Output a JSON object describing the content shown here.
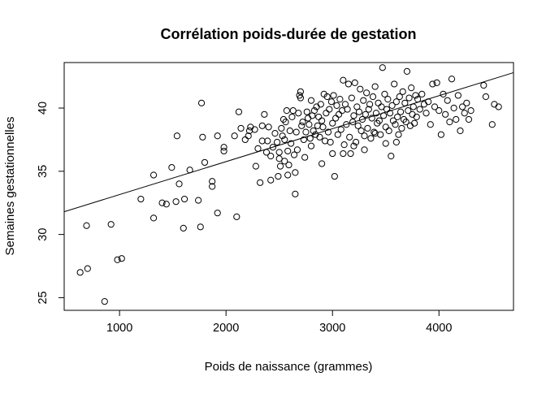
{
  "chart_data": {
    "type": "scatter",
    "title": "Corrélation poids-durée de gestation",
    "xlabel": "Poids de naissance (grammes)",
    "ylabel": "Semaines gestationnelles",
    "xlim": [
      480,
      4700
    ],
    "ylim": [
      24,
      43.6
    ],
    "xticks": [
      1000,
      2000,
      3000,
      4000
    ],
    "yticks": [
      25,
      30,
      35,
      40
    ],
    "marker": "open-circle",
    "grid": false,
    "legend": "none",
    "colors": {
      "points": "#000000",
      "line": "#000000",
      "background": "#ffffff"
    },
    "regression_line": {
      "x": [
        480,
        4700
      ],
      "y": [
        31.8,
        42.8
      ]
    },
    "points": [
      [
        630,
        27
      ],
      [
        690,
        30.7
      ],
      [
        700,
        27.3
      ],
      [
        860,
        24.7
      ],
      [
        920,
        30.8
      ],
      [
        980,
        28
      ],
      [
        1020,
        28.1
      ],
      [
        1200,
        32.8
      ],
      [
        1320,
        31.3
      ],
      [
        1320,
        34.7
      ],
      [
        1400,
        32.5
      ],
      [
        1440,
        32.4
      ],
      [
        1490,
        35.3
      ],
      [
        1530,
        32.6
      ],
      [
        1540,
        37.8
      ],
      [
        1560,
        34
      ],
      [
        1600,
        30.5
      ],
      [
        1610,
        32.8
      ],
      [
        1660,
        35.1
      ],
      [
        1740,
        32.7
      ],
      [
        1760,
        30.6
      ],
      [
        1770,
        40.4
      ],
      [
        1780,
        37.7
      ],
      [
        1800,
        35.7
      ],
      [
        1870,
        34.2
      ],
      [
        1870,
        33.8
      ],
      [
        1920,
        31.7
      ],
      [
        1920,
        37.8
      ],
      [
        1980,
        36.6
      ],
      [
        1980,
        36.9
      ],
      [
        2080,
        37.8
      ],
      [
        2100,
        31.4
      ],
      [
        2120,
        39.7
      ],
      [
        2140,
        38.4
      ],
      [
        2180,
        37.5
      ],
      [
        2210,
        37.8
      ],
      [
        2220,
        38.2
      ],
      [
        2230,
        38.5
      ],
      [
        2270,
        38.3
      ],
      [
        2280,
        35.4
      ],
      [
        2300,
        36.8
      ],
      [
        2320,
        34.1
      ],
      [
        2340,
        38.6
      ],
      [
        2340,
        37.4
      ],
      [
        2360,
        39.5
      ],
      [
        2380,
        36.5
      ],
      [
        2390,
        37.4
      ],
      [
        2400,
        38.5
      ],
      [
        2420,
        36.2
      ],
      [
        2420,
        34.3
      ],
      [
        2440,
        36.9
      ],
      [
        2460,
        38
      ],
      [
        2480,
        37.3
      ],
      [
        2490,
        34.6
      ],
      [
        2500,
        36.5
      ],
      [
        2510,
        35.4
      ],
      [
        2520,
        38.4
      ],
      [
        2530,
        37.8
      ],
      [
        2540,
        39.1
      ],
      [
        2550,
        35.8
      ],
      [
        2550,
        37.5
      ],
      [
        2560,
        38.9
      ],
      [
        2570,
        39.8
      ],
      [
        2580,
        36.6
      ],
      [
        2580,
        34.7
      ],
      [
        2590,
        35.5
      ],
      [
        2600,
        38.2
      ],
      [
        2610,
        37.2
      ],
      [
        2620,
        39.3
      ],
      [
        2630,
        39.8
      ],
      [
        2640,
        36.3
      ],
      [
        2650,
        33.2
      ],
      [
        2650,
        34.9
      ],
      [
        2660,
        38.1
      ],
      [
        2670,
        36.7
      ],
      [
        2680,
        39.6
      ],
      [
        2690,
        41
      ],
      [
        2700,
        40.8
      ],
      [
        2700,
        41.3
      ],
      [
        2710,
        38.6
      ],
      [
        2720,
        38.9
      ],
      [
        2730,
        37.5
      ],
      [
        2740,
        36.1
      ],
      [
        2750,
        38.1
      ],
      [
        2760,
        39.7
      ],
      [
        2770,
        39.2
      ],
      [
        2780,
        38.7
      ],
      [
        2790,
        37.6
      ],
      [
        2800,
        40.6
      ],
      [
        2810,
        39.4
      ],
      [
        2820,
        38.2
      ],
      [
        2830,
        39.8
      ],
      [
        2840,
        37.9
      ],
      [
        2850,
        40.1
      ],
      [
        2860,
        38.6
      ],
      [
        2870,
        39.3
      ],
      [
        2880,
        37.7
      ],
      [
        2890,
        40.3
      ],
      [
        2900,
        39
      ],
      [
        2910,
        38.5
      ],
      [
        2920,
        41.1
      ],
      [
        2930,
        37.4
      ],
      [
        2940,
        39.6
      ],
      [
        2950,
        40.9
      ],
      [
        2960,
        38.1
      ],
      [
        2970,
        39.9
      ],
      [
        2980,
        37.3
      ],
      [
        2990,
        40.5
      ],
      [
        3000,
        38.8
      ],
      [
        3010,
        41
      ],
      [
        3020,
        34.6
      ],
      [
        3030,
        39.2
      ],
      [
        3040,
        40.2
      ],
      [
        3050,
        37.9
      ],
      [
        3060,
        39.5
      ],
      [
        3070,
        40.7
      ],
      [
        3080,
        38.3
      ],
      [
        3090,
        39.8
      ],
      [
        3100,
        42.2
      ],
      [
        3110,
        37.1
      ],
      [
        3120,
        40.3
      ],
      [
        3130,
        38.7
      ],
      [
        3140,
        39.9
      ],
      [
        3150,
        41.9
      ],
      [
        3160,
        37.7
      ],
      [
        3170,
        36.4
      ],
      [
        3180,
        40.8
      ],
      [
        3190,
        38.9
      ],
      [
        3200,
        39.4
      ],
      [
        3210,
        42
      ],
      [
        3220,
        37.3
      ],
      [
        3230,
        40.1
      ],
      [
        3240,
        38.6
      ],
      [
        3250,
        39.7
      ],
      [
        3260,
        41.5
      ],
      [
        3270,
        38.2
      ],
      [
        3280,
        39.1
      ],
      [
        3290,
        40.6
      ],
      [
        3300,
        37.8
      ],
      [
        3310,
        39.5
      ],
      [
        3320,
        41.2
      ],
      [
        3330,
        38.4
      ],
      [
        3340,
        39.9
      ],
      [
        3350,
        40.3
      ],
      [
        3360,
        37.6
      ],
      [
        3370,
        39.2
      ],
      [
        3380,
        40.9
      ],
      [
        3390,
        38.1
      ],
      [
        3400,
        41.7
      ],
      [
        3410,
        39.6
      ],
      [
        3420,
        38.8
      ],
      [
        3430,
        40.4
      ],
      [
        3440,
        39
      ],
      [
        3450,
        37.9
      ],
      [
        3460,
        40.1
      ],
      [
        3470,
        43.2
      ],
      [
        3480,
        39.4
      ],
      [
        3490,
        41.1
      ],
      [
        3500,
        38.5
      ],
      [
        3510,
        39.9
      ],
      [
        3520,
        40.7
      ],
      [
        3530,
        38.2
      ],
      [
        3540,
        39.6
      ],
      [
        3550,
        36.2
      ],
      [
        3560,
        40.2
      ],
      [
        3570,
        39
      ],
      [
        3580,
        41.9
      ],
      [
        3590,
        38.7
      ],
      [
        3600,
        40.5
      ],
      [
        3610,
        39.3
      ],
      [
        3620,
        37.9
      ],
      [
        3630,
        40.9
      ],
      [
        3640,
        39.7
      ],
      [
        3650,
        38.4
      ],
      [
        3660,
        41.3
      ],
      [
        3670,
        39.1
      ],
      [
        3680,
        40.4
      ],
      [
        3690,
        38.9
      ],
      [
        3700,
        42.9
      ],
      [
        3710,
        39.8
      ],
      [
        3720,
        40.8
      ],
      [
        3730,
        38.6
      ],
      [
        3740,
        41.6
      ],
      [
        3750,
        39.5
      ],
      [
        3760,
        40.1
      ],
      [
        3770,
        38.8
      ],
      [
        3780,
        41
      ],
      [
        3790,
        39.3
      ],
      [
        3800,
        40.7
      ],
      [
        3820,
        39.9
      ],
      [
        3840,
        41.1
      ],
      [
        3860,
        40.3
      ],
      [
        3880,
        39.6
      ],
      [
        3900,
        40.5
      ],
      [
        3920,
        38.7
      ],
      [
        3940,
        41.9
      ],
      [
        3960,
        40.1
      ],
      [
        3980,
        42
      ],
      [
        4000,
        39.8
      ],
      [
        4020,
        37.9
      ],
      [
        4040,
        41.1
      ],
      [
        4060,
        39.5
      ],
      [
        4080,
        40.6
      ],
      [
        4100,
        38.9
      ],
      [
        4120,
        42.3
      ],
      [
        4140,
        40
      ],
      [
        4160,
        39.1
      ],
      [
        4180,
        41
      ],
      [
        4200,
        38.2
      ],
      [
        4220,
        40.1
      ],
      [
        4240,
        39.6
      ],
      [
        4260,
        40.4
      ],
      [
        4280,
        39.1
      ],
      [
        4300,
        39.8
      ],
      [
        4420,
        41.8
      ],
      [
        4440,
        40.9
      ],
      [
        4500,
        38.7
      ],
      [
        4520,
        40.3
      ],
      [
        4560,
        40.1
      ],
      [
        3300,
        36.7
      ],
      [
        3100,
        36.4
      ],
      [
        2900,
        35.6
      ],
      [
        3200,
        37
      ],
      [
        3400,
        38
      ],
      [
        2800,
        37
      ],
      [
        3600,
        37.3
      ],
      [
        3500,
        37.2
      ],
      [
        3000,
        36.4
      ],
      [
        2500,
        36
      ]
    ]
  }
}
